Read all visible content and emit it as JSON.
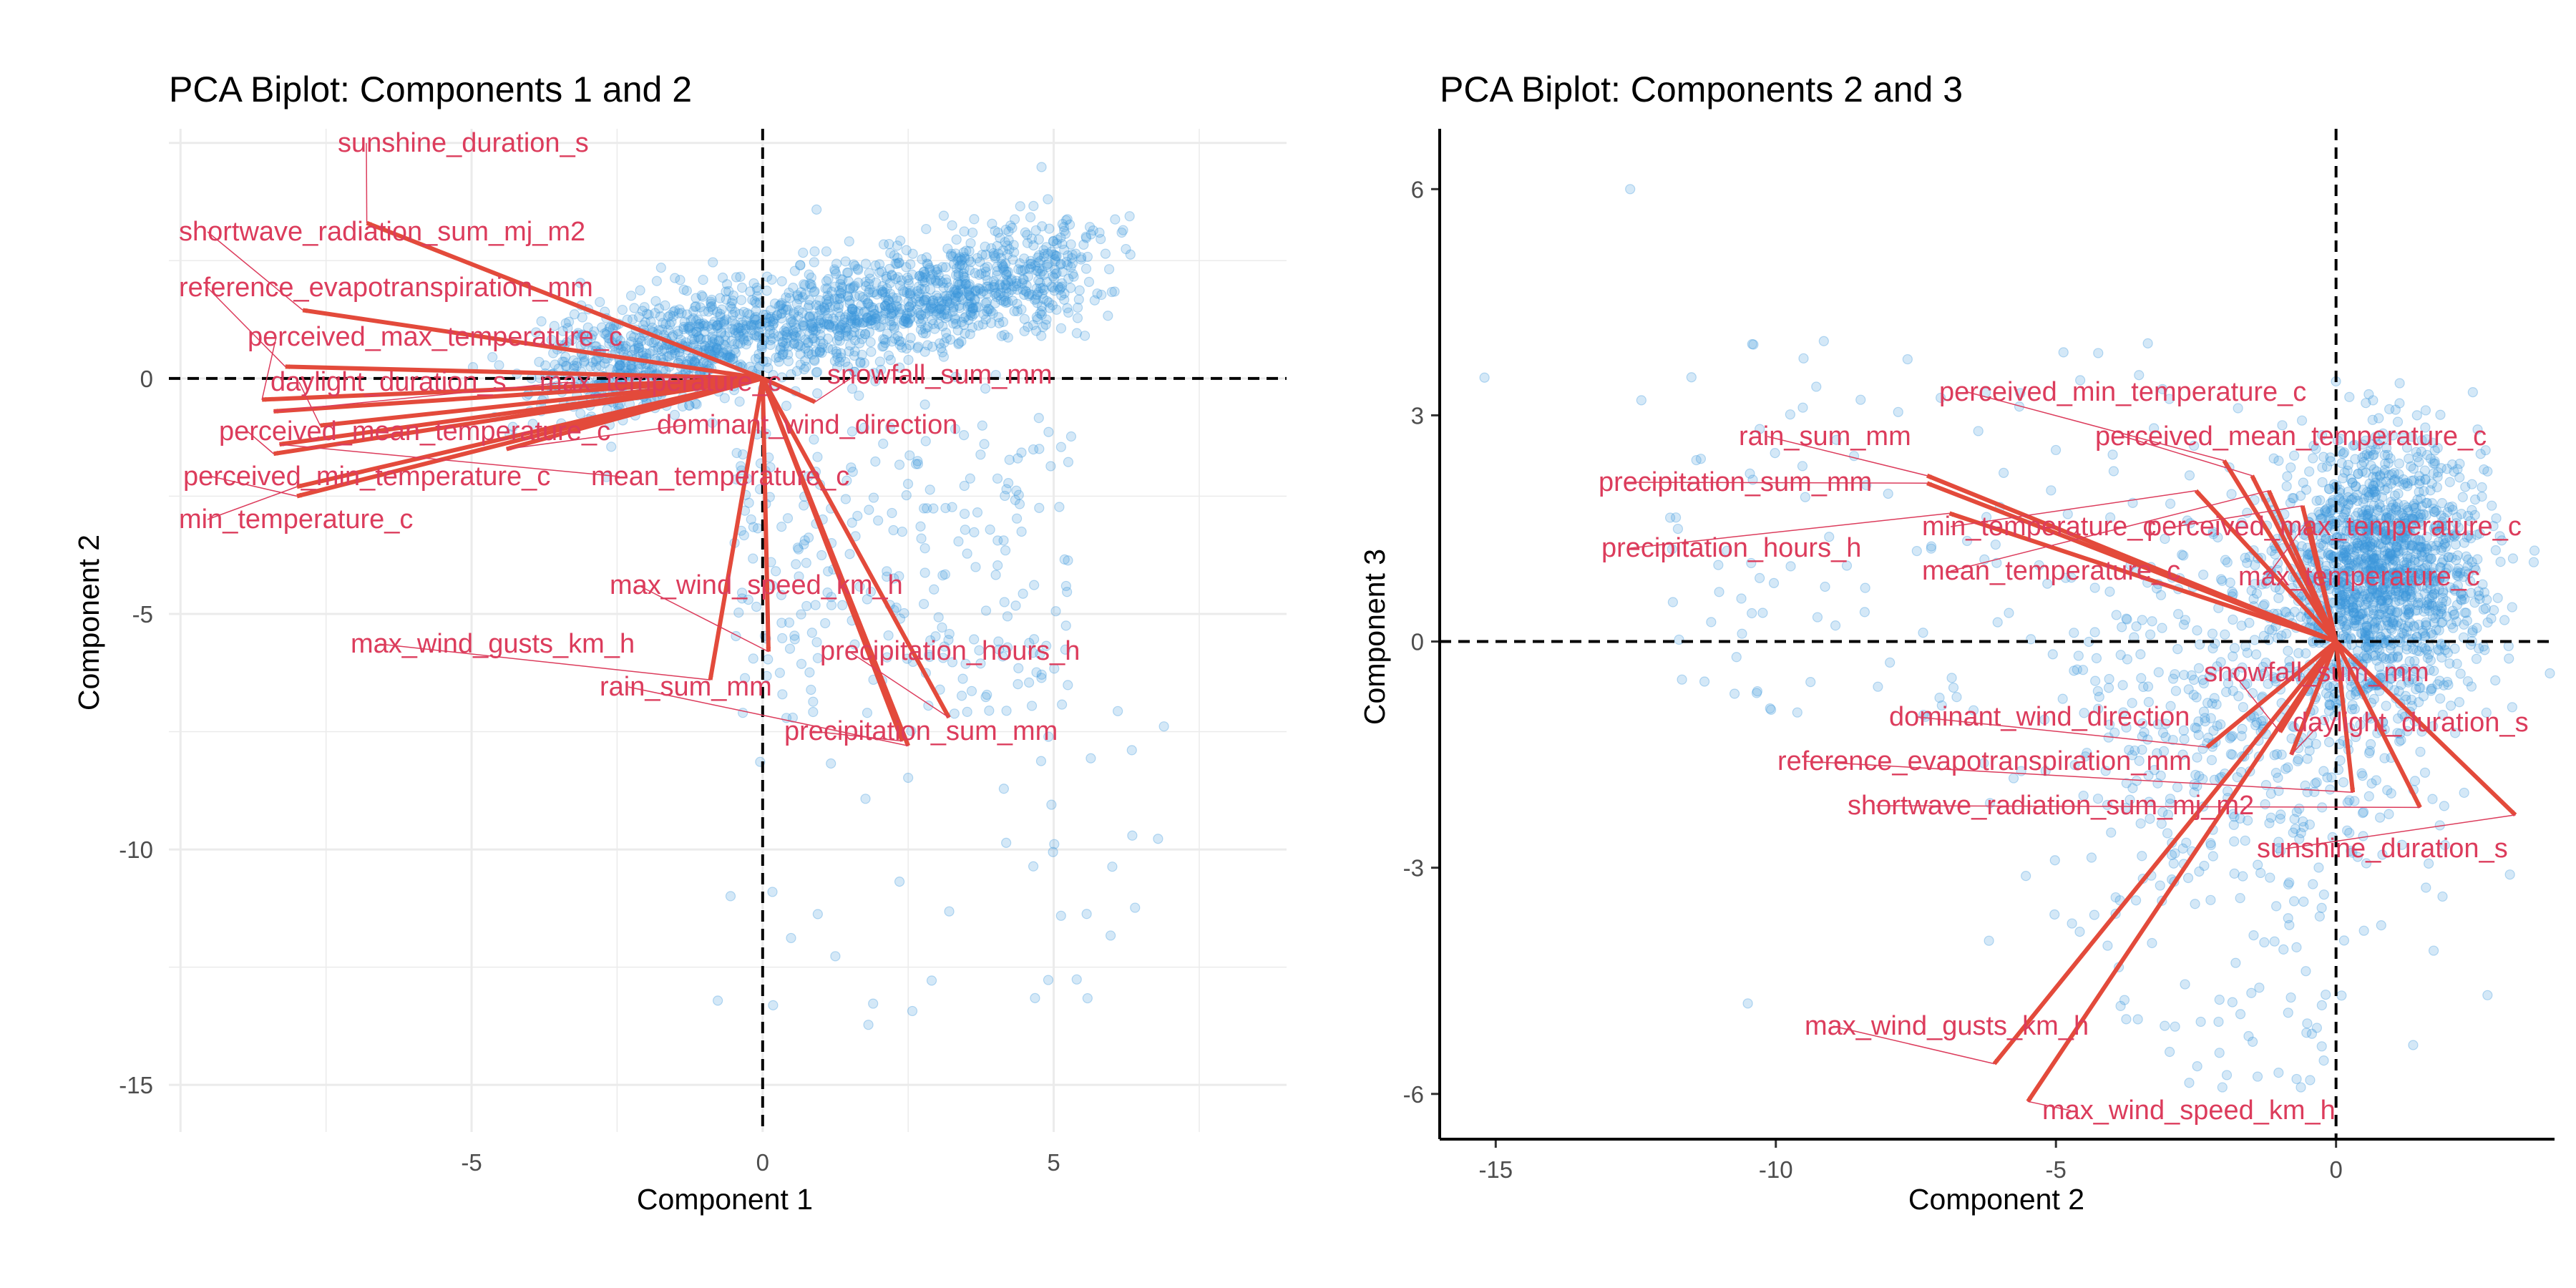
{
  "colors": {
    "points": "#3c98dc",
    "arrows": "#e34a3b",
    "labels": "#dc3c5c",
    "grid": "#ebebeb"
  },
  "chart_data": [
    {
      "type": "scatter",
      "title": "PCA Biplot: Components 1 and 2",
      "xlabel": "Component 1",
      "ylabel": "Component 2",
      "xlim": [
        -10.2,
        9.0
      ],
      "ylim": [
        -16.0,
        5.3
      ],
      "xticks": [
        -5,
        0,
        5
      ],
      "yticks": [
        0,
        -5,
        -10,
        -15
      ],
      "grid": true,
      "reference_lines": {
        "x": 0,
        "y": 0
      },
      "loadings": [
        {
          "name": "sunshine_duration_s",
          "x": -6.8,
          "y": 3.3
        },
        {
          "name": "shortwave_radiation_sum_mj_m2",
          "x": -7.9,
          "y": 1.45
        },
        {
          "name": "reference_evapotranspiration_mm",
          "x": -8.2,
          "y": 0.25
        },
        {
          "name": "perceived_max_temperature_c",
          "x": -8.6,
          "y": -0.45
        },
        {
          "name": "daylight_duration_s",
          "x": -7.6,
          "y": -1.0
        },
        {
          "name": "max_temperature_c",
          "x": -8.4,
          "y": -0.7
        },
        {
          "name": "perceived_mean_temperature_c",
          "x": -8.4,
          "y": -1.6
        },
        {
          "name": "mean_temperature_c",
          "x": -8.3,
          "y": -1.4
        },
        {
          "name": "perceived_min_temperature_c",
          "x": -8.0,
          "y": -2.5
        },
        {
          "name": "min_temperature_c",
          "x": -8.0,
          "y": -2.3
        },
        {
          "name": "snowfall_sum_mm",
          "x": 0.9,
          "y": -0.5
        },
        {
          "name": "dominant_wind_direction",
          "x": -4.4,
          "y": -1.5
        },
        {
          "name": "max_wind_speed_km_h",
          "x": 0.1,
          "y": -5.8
        },
        {
          "name": "max_wind_gusts_km_h",
          "x": -0.9,
          "y": -6.4
        },
        {
          "name": "precipitation_hours_h",
          "x": 3.2,
          "y": -7.2
        },
        {
          "name": "rain_sum_mm",
          "x": 2.5,
          "y": -7.8
        },
        {
          "name": "precipitation_sum_mm",
          "x": 2.4,
          "y": -7.7
        }
      ]
    },
    {
      "type": "scatter",
      "title": "PCA Biplot: Components 2 and 3",
      "xlabel": "Component 2",
      "ylabel": "Component 3",
      "xlim": [
        -16.0,
        3.9
      ],
      "ylim": [
        -6.6,
        6.8
      ],
      "xticks": [
        -15,
        -10,
        -5,
        0
      ],
      "yticks": [
        6,
        3,
        0,
        -3,
        -6
      ],
      "grid": false,
      "reference_lines": {
        "x": 0,
        "y": 0
      },
      "loadings": [
        {
          "name": "perceived_min_temperature_c",
          "x": -2.0,
          "y": 2.4
        },
        {
          "name": "perceived_mean_temperature_c",
          "x": -1.5,
          "y": 2.2
        },
        {
          "name": "rain_sum_mm",
          "x": -7.3,
          "y": 2.2
        },
        {
          "name": "precipitation_sum_mm",
          "x": -7.3,
          "y": 2.1
        },
        {
          "name": "precipitation_hours_h",
          "x": -6.9,
          "y": 1.7
        },
        {
          "name": "min_temperature_c",
          "x": -2.5,
          "y": 2.0
        },
        {
          "name": "perceived_max_temperature_c",
          "x": -0.6,
          "y": 1.8
        },
        {
          "name": "mean_temperature_c",
          "x": -1.2,
          "y": 2.0
        },
        {
          "name": "max_temperature_c",
          "x": -0.5,
          "y": 1.6
        },
        {
          "name": "snowfall_sum_mm",
          "x": -1.0,
          "y": -1.2
        },
        {
          "name": "dominant_wind_direction",
          "x": -2.3,
          "y": -1.4
        },
        {
          "name": "daylight_duration_s",
          "x": -0.8,
          "y": -1.5
        },
        {
          "name": "reference_evapotranspiration_mm",
          "x": 0.3,
          "y": -2.0
        },
        {
          "name": "shortwave_radiation_sum_mj_m2",
          "x": 1.5,
          "y": -2.2
        },
        {
          "name": "sunshine_duration_s",
          "x": 3.2,
          "y": -2.3
        },
        {
          "name": "max_wind_gusts_km_h",
          "x": -6.1,
          "y": -5.6
        },
        {
          "name": "max_wind_speed_km_h",
          "x": -5.5,
          "y": -6.1
        }
      ]
    }
  ]
}
